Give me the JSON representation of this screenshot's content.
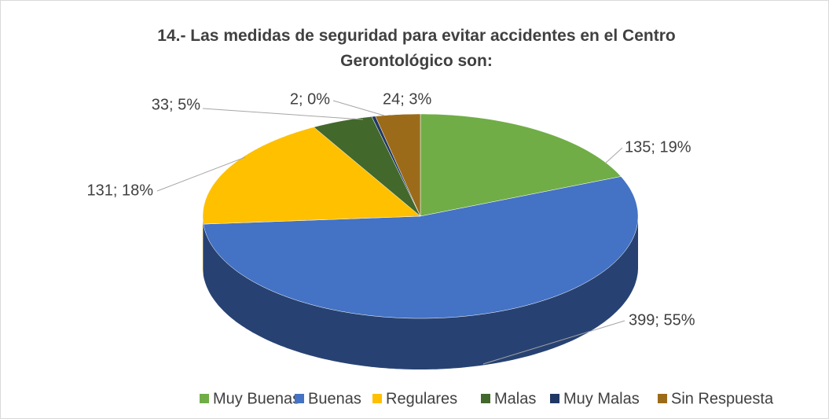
{
  "chart_data": {
    "type": "pie3d",
    "title": "14.- Las medidas de seguridad para evitar accidentes en el Centro Gerontológico son:",
    "categories": [
      "Muy Buenas",
      "Buenas",
      "Regulares",
      "Malas",
      "Muy Malas",
      "Sin Respuesta"
    ],
    "values": [
      135,
      399,
      131,
      33,
      2,
      24
    ],
    "value_labels": [
      "135; 19%",
      "399; 55%",
      "131; 18%",
      "33; 5%",
      "2; 0%",
      "24; 3%"
    ],
    "colors": [
      "#70ad47",
      "#4472c4",
      "#ffc000",
      "#43682b",
      "#203864",
      "#9c6b1a"
    ],
    "legend": "bottom"
  }
}
